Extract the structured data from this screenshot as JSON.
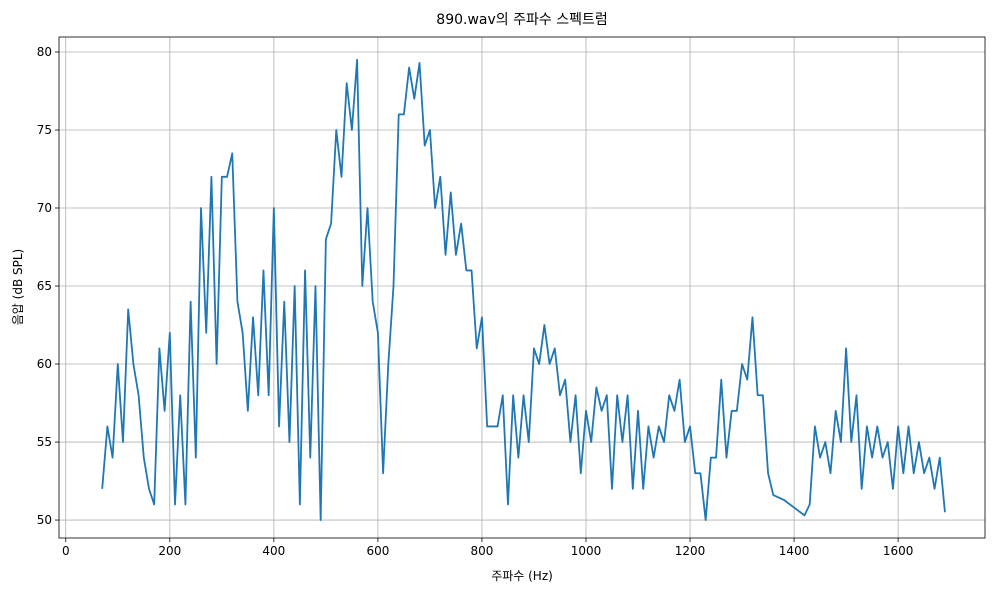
{
  "chart_data": {
    "type": "line",
    "title": "890.wav의 주파수 스펙트럼",
    "x_label": "주파수 (Hz)",
    "y_label": "음압 (dB SPL)",
    "x": [
      70,
      80,
      90,
      100,
      110,
      120,
      130,
      140,
      150,
      160,
      170,
      180,
      190,
      200,
      210,
      220,
      230,
      240,
      250,
      260,
      270,
      280,
      290,
      300,
      310,
      320,
      330,
      340,
      350,
      360,
      370,
      380,
      390,
      400,
      410,
      420,
      430,
      440,
      450,
      460,
      470,
      480,
      490,
      500,
      510,
      520,
      530,
      540,
      550,
      560,
      570,
      580,
      590,
      600,
      610,
      620,
      630,
      640,
      650,
      660,
      670,
      680,
      690,
      700,
      710,
      720,
      730,
      740,
      750,
      760,
      770,
      780,
      790,
      800,
      810,
      820,
      830,
      840,
      850,
      860,
      870,
      880,
      890,
      900,
      910,
      920,
      930,
      940,
      950,
      960,
      970,
      980,
      990,
      1000,
      1010,
      1020,
      1030,
      1040,
      1050,
      1060,
      1070,
      1080,
      1090,
      1100,
      1110,
      1120,
      1130,
      1140,
      1150,
      1160,
      1170,
      1180,
      1190,
      1200,
      1210,
      1220,
      1230,
      1240,
      1250,
      1260,
      1270,
      1280,
      1290,
      1300,
      1310,
      1320,
      1330,
      1340,
      1350,
      1360,
      1380,
      1400,
      1420,
      1430,
      1440,
      1450,
      1460,
      1470,
      1480,
      1490,
      1500,
      1510,
      1520,
      1530,
      1540,
      1550,
      1560,
      1570,
      1580,
      1590,
      1600,
      1610,
      1620,
      1630,
      1640,
      1650,
      1660,
      1670,
      1680,
      1690
    ],
    "series": [
      {
        "color": "#1f77b4",
        "values": [
          52,
          56,
          54,
          60,
          55,
          63.5,
          60,
          58,
          54,
          52,
          51,
          61,
          57,
          62,
          51,
          58,
          51,
          64,
          54,
          70,
          62,
          72,
          60,
          72,
          72,
          73.5,
          64,
          62,
          57,
          63,
          58,
          66,
          58,
          70,
          56,
          64,
          55,
          65,
          51,
          66,
          54,
          65,
          50,
          68,
          69,
          75,
          72,
          78,
          75,
          79.5,
          65,
          70,
          64,
          62,
          53,
          60,
          65,
          76,
          76,
          79,
          77,
          79.3,
          74,
          75,
          70,
          72,
          67,
          71,
          67,
          69,
          66,
          66,
          61,
          63,
          56,
          56,
          56,
          58,
          51,
          58,
          54,
          58,
          55,
          61,
          60,
          62.5,
          60,
          61,
          58,
          59,
          55,
          58,
          53,
          57,
          55,
          58.5,
          57,
          58,
          52,
          58,
          55,
          58,
          52,
          57,
          52,
          56,
          54,
          56,
          55,
          58,
          57,
          59,
          55,
          56,
          53,
          53,
          50,
          54,
          54,
          59,
          54,
          57,
          57,
          60,
          59,
          63,
          58,
          58,
          53,
          51.6,
          51.3,
          50.8,
          50.3,
          51,
          56,
          54,
          55,
          53,
          57,
          55,
          61,
          55,
          58,
          52,
          56,
          54,
          56,
          54,
          55,
          52,
          56,
          53,
          56,
          53,
          55,
          53,
          54,
          52,
          54,
          50.5
        ]
      }
    ],
    "xlim": [
      -13,
      1767
    ],
    "ylim": [
      48.85,
      80.96
    ],
    "xticks": [
      0,
      200,
      400,
      600,
      800,
      1000,
      1200,
      1400,
      1600
    ],
    "yticks": [
      50,
      55,
      60,
      65,
      70,
      75,
      80
    ],
    "grid": true
  }
}
